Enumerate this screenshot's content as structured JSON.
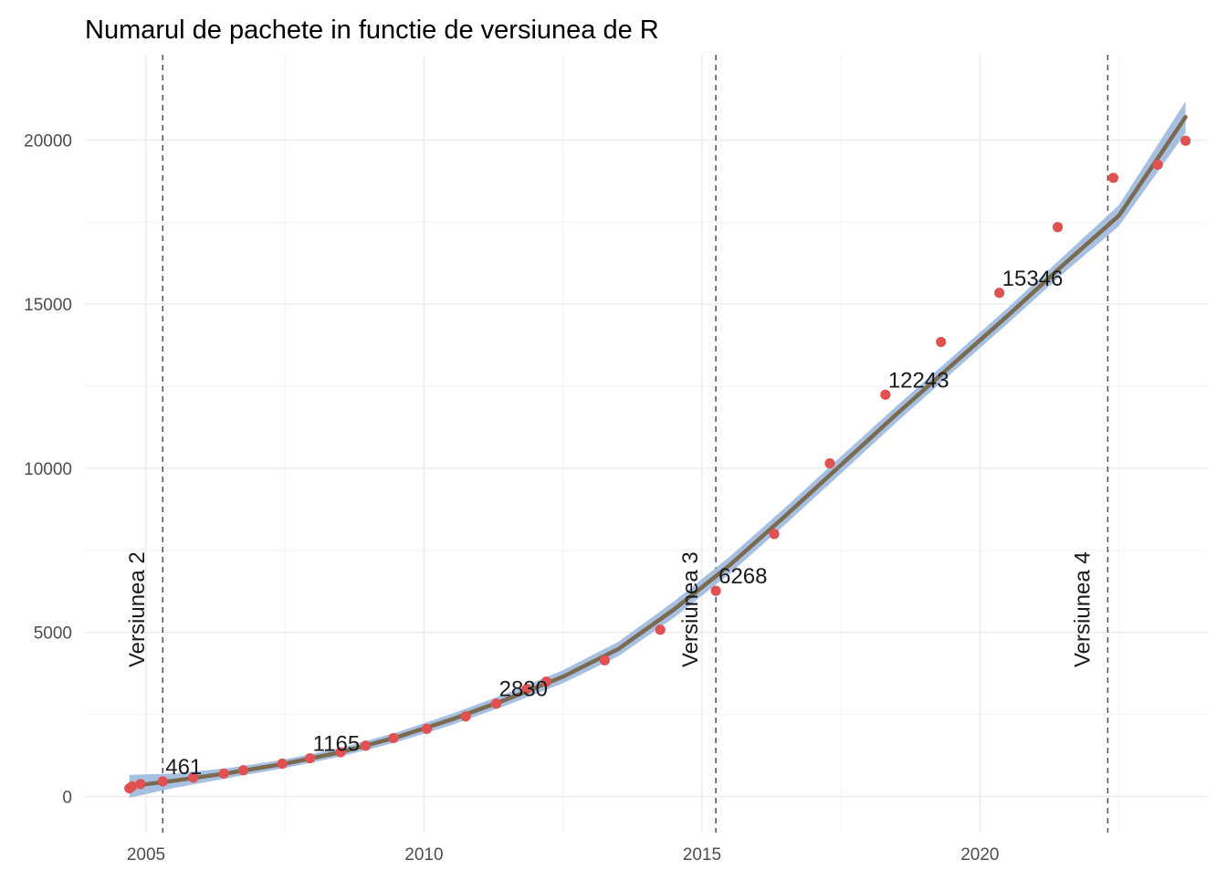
{
  "chart_data": {
    "type": "scatter",
    "title": "Numarul de pachete in functie de versiunea de R",
    "xlabel": "",
    "ylabel": "",
    "xlim": [
      2003.9,
      2024.1
    ],
    "ylim": [
      -1100,
      22600
    ],
    "x_ticks": [
      2005,
      2010,
      2015,
      2020
    ],
    "x_minor": [
      2007.5,
      2012.5,
      2017.5,
      2022.5
    ],
    "y_ticks": [
      0,
      5000,
      10000,
      15000,
      20000
    ],
    "y_minor": [
      2500,
      7500,
      12500,
      17500
    ],
    "grid": true,
    "colors": {
      "points": "#e05152",
      "trend": "#7a6a4f",
      "band": "#a2bde0",
      "vlines": "#595959"
    },
    "points": [
      {
        "x": 2004.7,
        "y": 250
      },
      {
        "x": 2004.75,
        "y": 310
      },
      {
        "x": 2004.9,
        "y": 380
      },
      {
        "x": 2005.3,
        "y": 461
      },
      {
        "x": 2005.85,
        "y": 580
      },
      {
        "x": 2006.4,
        "y": 700
      },
      {
        "x": 2006.75,
        "y": 800
      },
      {
        "x": 2007.45,
        "y": 1000
      },
      {
        "x": 2007.95,
        "y": 1165
      },
      {
        "x": 2008.5,
        "y": 1350
      },
      {
        "x": 2008.95,
        "y": 1550
      },
      {
        "x": 2009.45,
        "y": 1780
      },
      {
        "x": 2010.05,
        "y": 2060
      },
      {
        "x": 2010.75,
        "y": 2440
      },
      {
        "x": 2011.3,
        "y": 2830
      },
      {
        "x": 2011.85,
        "y": 3280
      },
      {
        "x": 2012.2,
        "y": 3500
      },
      {
        "x": 2013.25,
        "y": 4150
      },
      {
        "x": 2014.25,
        "y": 5080
      },
      {
        "x": 2015.25,
        "y": 6268
      },
      {
        "x": 2016.3,
        "y": 8000
      },
      {
        "x": 2017.3,
        "y": 10150
      },
      {
        "x": 2018.3,
        "y": 12243
      },
      {
        "x": 2019.3,
        "y": 13850
      },
      {
        "x": 2020.35,
        "y": 15346
      },
      {
        "x": 2021.4,
        "y": 17350
      },
      {
        "x": 2022.4,
        "y": 18850
      },
      {
        "x": 2023.2,
        "y": 19250
      },
      {
        "x": 2023.7,
        "y": 19980
      }
    ],
    "trend": [
      {
        "x": 2004.7,
        "y": 310
      },
      {
        "x": 2005.5,
        "y": 480
      },
      {
        "x": 2006.5,
        "y": 720
      },
      {
        "x": 2007.5,
        "y": 1000
      },
      {
        "x": 2008.5,
        "y": 1350
      },
      {
        "x": 2009.5,
        "y": 1800
      },
      {
        "x": 2010.5,
        "y": 2350
      },
      {
        "x": 2011.5,
        "y": 2970
      },
      {
        "x": 2012.5,
        "y": 3650
      },
      {
        "x": 2013.5,
        "y": 4500
      },
      {
        "x": 2014.5,
        "y": 5700
      },
      {
        "x": 2015.5,
        "y": 7050
      },
      {
        "x": 2016.5,
        "y": 8550
      },
      {
        "x": 2017.5,
        "y": 10100
      },
      {
        "x": 2018.5,
        "y": 11650
      },
      {
        "x": 2019.5,
        "y": 13150
      },
      {
        "x": 2020.5,
        "y": 14650
      },
      {
        "x": 2021.5,
        "y": 16200
      },
      {
        "x": 2022.5,
        "y": 17700
      },
      {
        "x": 2023.7,
        "y": 20700
      }
    ],
    "band_halfwidth": [
      350,
      220,
      150,
      130,
      130,
      150,
      170,
      180,
      200,
      220,
      250,
      260,
      260,
      260,
      250,
      240,
      240,
      260,
      320,
      480
    ],
    "value_labels": [
      {
        "text": "461",
        "x": 2005.3,
        "y": 461
      },
      {
        "text": "1165",
        "x": 2007.95,
        "y": 1165
      },
      {
        "text": "2830",
        "x": 2011.3,
        "y": 2830
      },
      {
        "text": "6268",
        "x": 2015.25,
        "y": 6268
      },
      {
        "text": "12243",
        "x": 2018.3,
        "y": 12243
      },
      {
        "text": "15346",
        "x": 2020.35,
        "y": 15346
      }
    ],
    "version_lines": [
      {
        "label": "Versiunea 2",
        "x": 2005.3
      },
      {
        "label": "Versiunea 3",
        "x": 2015.25
      },
      {
        "label": "Versiunea 4",
        "x": 2022.3
      }
    ]
  }
}
